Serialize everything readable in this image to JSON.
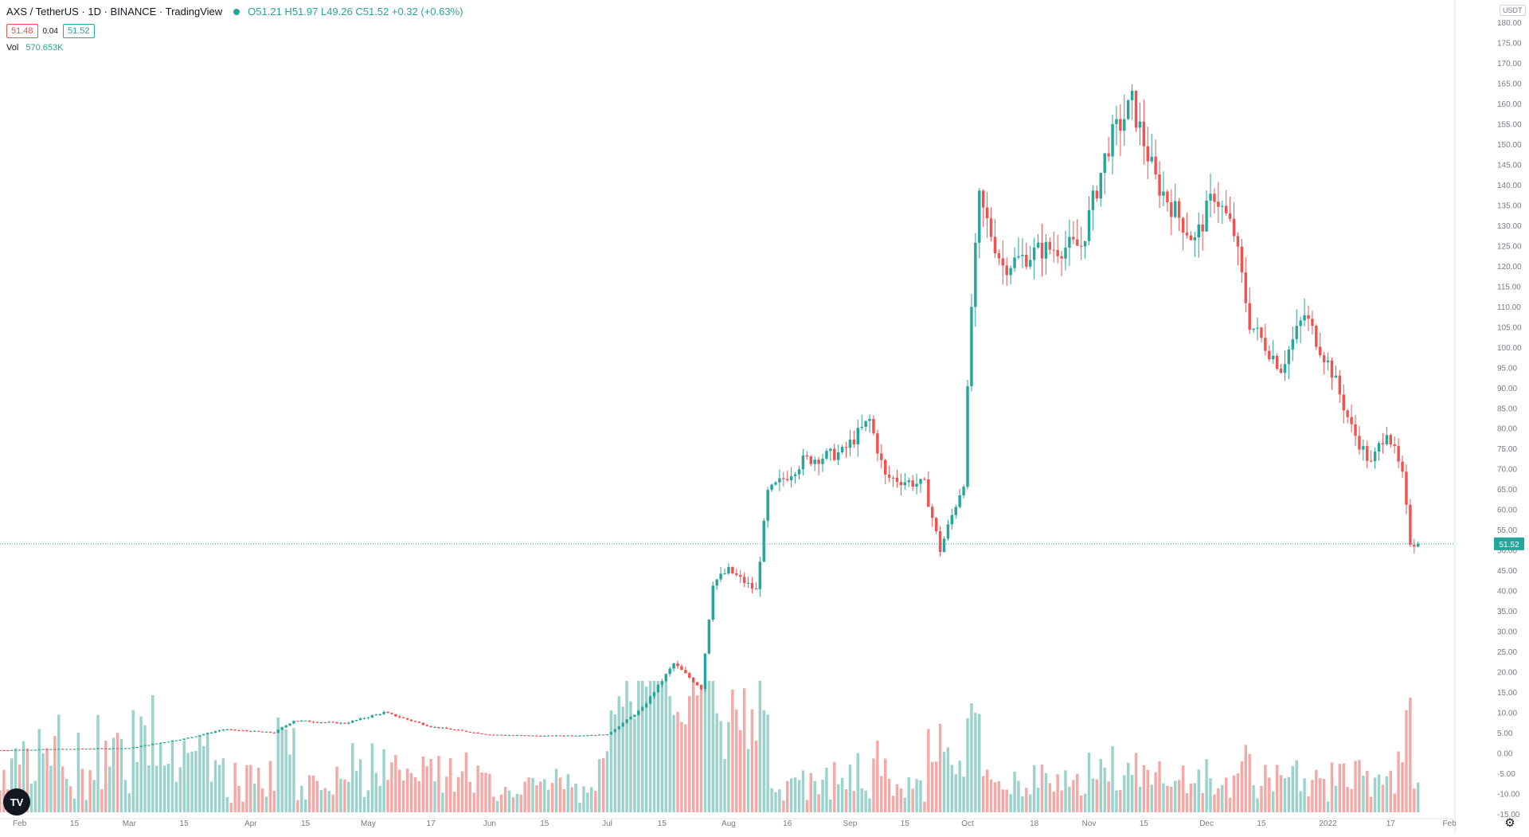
{
  "header": {
    "symbol": "AXS / TetherUS · 1D · BINANCE · TradingView",
    "ohlc": "O51.21  H51.97  L49.26  C51.52  +0.32 (+0.63%)",
    "bid": "51.48",
    "spread": "0.04",
    "ask": "51.52",
    "volume_label": "Vol",
    "volume_value": "570.653K",
    "unit": "USDT",
    "logo_text": "TV"
  },
  "colors": {
    "up": "#26a69a",
    "down": "#ef5350",
    "up_volume": "#9bd3cc",
    "down_volume": "#f5a8a6",
    "axis_text": "#787b86"
  },
  "chart_data": {
    "type": "candlestick",
    "x_axis": {
      "start": "2021-01-27",
      "end": "2022-02-02",
      "tick_labels": [
        {
          "label": "Feb",
          "date": "2021-02-01"
        },
        {
          "label": "15",
          "date": "2021-02-15"
        },
        {
          "label": "Mar",
          "date": "2021-03-01"
        },
        {
          "label": "15",
          "date": "2021-03-15"
        },
        {
          "label": "Apr",
          "date": "2021-04-01"
        },
        {
          "label": "15",
          "date": "2021-04-15"
        },
        {
          "label": "May",
          "date": "2021-05-01"
        },
        {
          "label": "17",
          "date": "2021-05-17"
        },
        {
          "label": "Jun",
          "date": "2021-06-01"
        },
        {
          "label": "15",
          "date": "2021-06-15"
        },
        {
          "label": "Jul",
          "date": "2021-07-01"
        },
        {
          "label": "15",
          "date": "2021-07-15"
        },
        {
          "label": "Aug",
          "date": "2021-08-01"
        },
        {
          "label": "16",
          "date": "2021-08-16"
        },
        {
          "label": "Sep",
          "date": "2021-09-01"
        },
        {
          "label": "15",
          "date": "2021-09-15"
        },
        {
          "label": "Oct",
          "date": "2021-10-01"
        },
        {
          "label": "18",
          "date": "2021-10-18"
        },
        {
          "label": "Nov",
          "date": "2021-11-01"
        },
        {
          "label": "15",
          "date": "2021-11-15"
        },
        {
          "label": "Dec",
          "date": "2021-12-01"
        },
        {
          "label": "15",
          "date": "2021-12-15"
        },
        {
          "label": "2022",
          "date": "2022-01-01"
        },
        {
          "label": "17",
          "date": "2022-01-17"
        },
        {
          "label": "Feb",
          "date": "2022-02-01"
        }
      ]
    },
    "y_axis": {
      "min": -15,
      "max": 180,
      "tick_labels": [
        "180.00",
        "175.00",
        "170.00",
        "165.00",
        "160.00",
        "155.00",
        "150.00",
        "145.00",
        "140.00",
        "135.00",
        "130.00",
        "125.00",
        "120.00",
        "115.00",
        "110.00",
        "105.00",
        "100.00",
        "95.00",
        "90.00",
        "85.00",
        "80.00",
        "75.00",
        "70.00",
        "65.00",
        "60.00",
        "55.00",
        "50.00",
        "45.00",
        "40.00",
        "35.00",
        "30.00",
        "25.00",
        "20.00",
        "15.00",
        "10.00",
        "5.00",
        "0.00",
        "-5.00",
        "-10.00",
        "-15.00"
      ]
    },
    "last_price": 51.52,
    "last_price_label": "51.52",
    "price_path": [
      {
        "date": "2021-01-27",
        "close": 0.7
      },
      {
        "date": "2021-02-15",
        "close": 1.0
      },
      {
        "date": "2021-03-01",
        "close": 1.2
      },
      {
        "date": "2021-03-15",
        "close": 3.5
      },
      {
        "date": "2021-03-25",
        "close": 5.8
      },
      {
        "date": "2021-04-07",
        "close": 5.0
      },
      {
        "date": "2021-04-12",
        "close": 8.0
      },
      {
        "date": "2021-04-25",
        "close": 7.3
      },
      {
        "date": "2021-05-05",
        "close": 10.0
      },
      {
        "date": "2021-05-17",
        "close": 6.5
      },
      {
        "date": "2021-06-01",
        "close": 4.5
      },
      {
        "date": "2021-06-15",
        "close": 4.2
      },
      {
        "date": "2021-07-01",
        "close": 4.5
      },
      {
        "date": "2021-07-10",
        "close": 11.0
      },
      {
        "date": "2021-07-18",
        "close": 22.0
      },
      {
        "date": "2021-07-25",
        "close": 16.0
      },
      {
        "date": "2021-07-28",
        "close": 42.0
      },
      {
        "date": "2021-08-01",
        "close": 45.0
      },
      {
        "date": "2021-08-08",
        "close": 40.0
      },
      {
        "date": "2021-08-11",
        "close": 64.0
      },
      {
        "date": "2021-08-20",
        "close": 72.0
      },
      {
        "date": "2021-08-30",
        "close": 74.0
      },
      {
        "date": "2021-09-06",
        "close": 82.0
      },
      {
        "date": "2021-09-10",
        "close": 68.0
      },
      {
        "date": "2021-09-20",
        "close": 66.0
      },
      {
        "date": "2021-09-24",
        "close": 50.0
      },
      {
        "date": "2021-09-30",
        "close": 67.0
      },
      {
        "date": "2021-10-02",
        "close": 110.0
      },
      {
        "date": "2021-10-04",
        "close": 136.0
      },
      {
        "date": "2021-10-10",
        "close": 120.0
      },
      {
        "date": "2021-10-20",
        "close": 124.0
      },
      {
        "date": "2021-10-30",
        "close": 125.0
      },
      {
        "date": "2021-11-06",
        "close": 150.0
      },
      {
        "date": "2021-11-12",
        "close": 160.0
      },
      {
        "date": "2021-11-18",
        "close": 141.0
      },
      {
        "date": "2021-11-28",
        "close": 126.0
      },
      {
        "date": "2021-12-03",
        "close": 138.0
      },
      {
        "date": "2021-12-08",
        "close": 128.0
      },
      {
        "date": "2021-12-12",
        "close": 106.0
      },
      {
        "date": "2021-12-20",
        "close": 95.0
      },
      {
        "date": "2021-12-26",
        "close": 108.0
      },
      {
        "date": "2022-01-02",
        "close": 94.0
      },
      {
        "date": "2022-01-07",
        "close": 80.0
      },
      {
        "date": "2022-01-12",
        "close": 71.0
      },
      {
        "date": "2022-01-16",
        "close": 80.0
      },
      {
        "date": "2022-01-20",
        "close": 68.0
      },
      {
        "date": "2022-01-22",
        "close": 52.0
      },
      {
        "date": "2022-01-24",
        "close": 51.52
      }
    ]
  }
}
